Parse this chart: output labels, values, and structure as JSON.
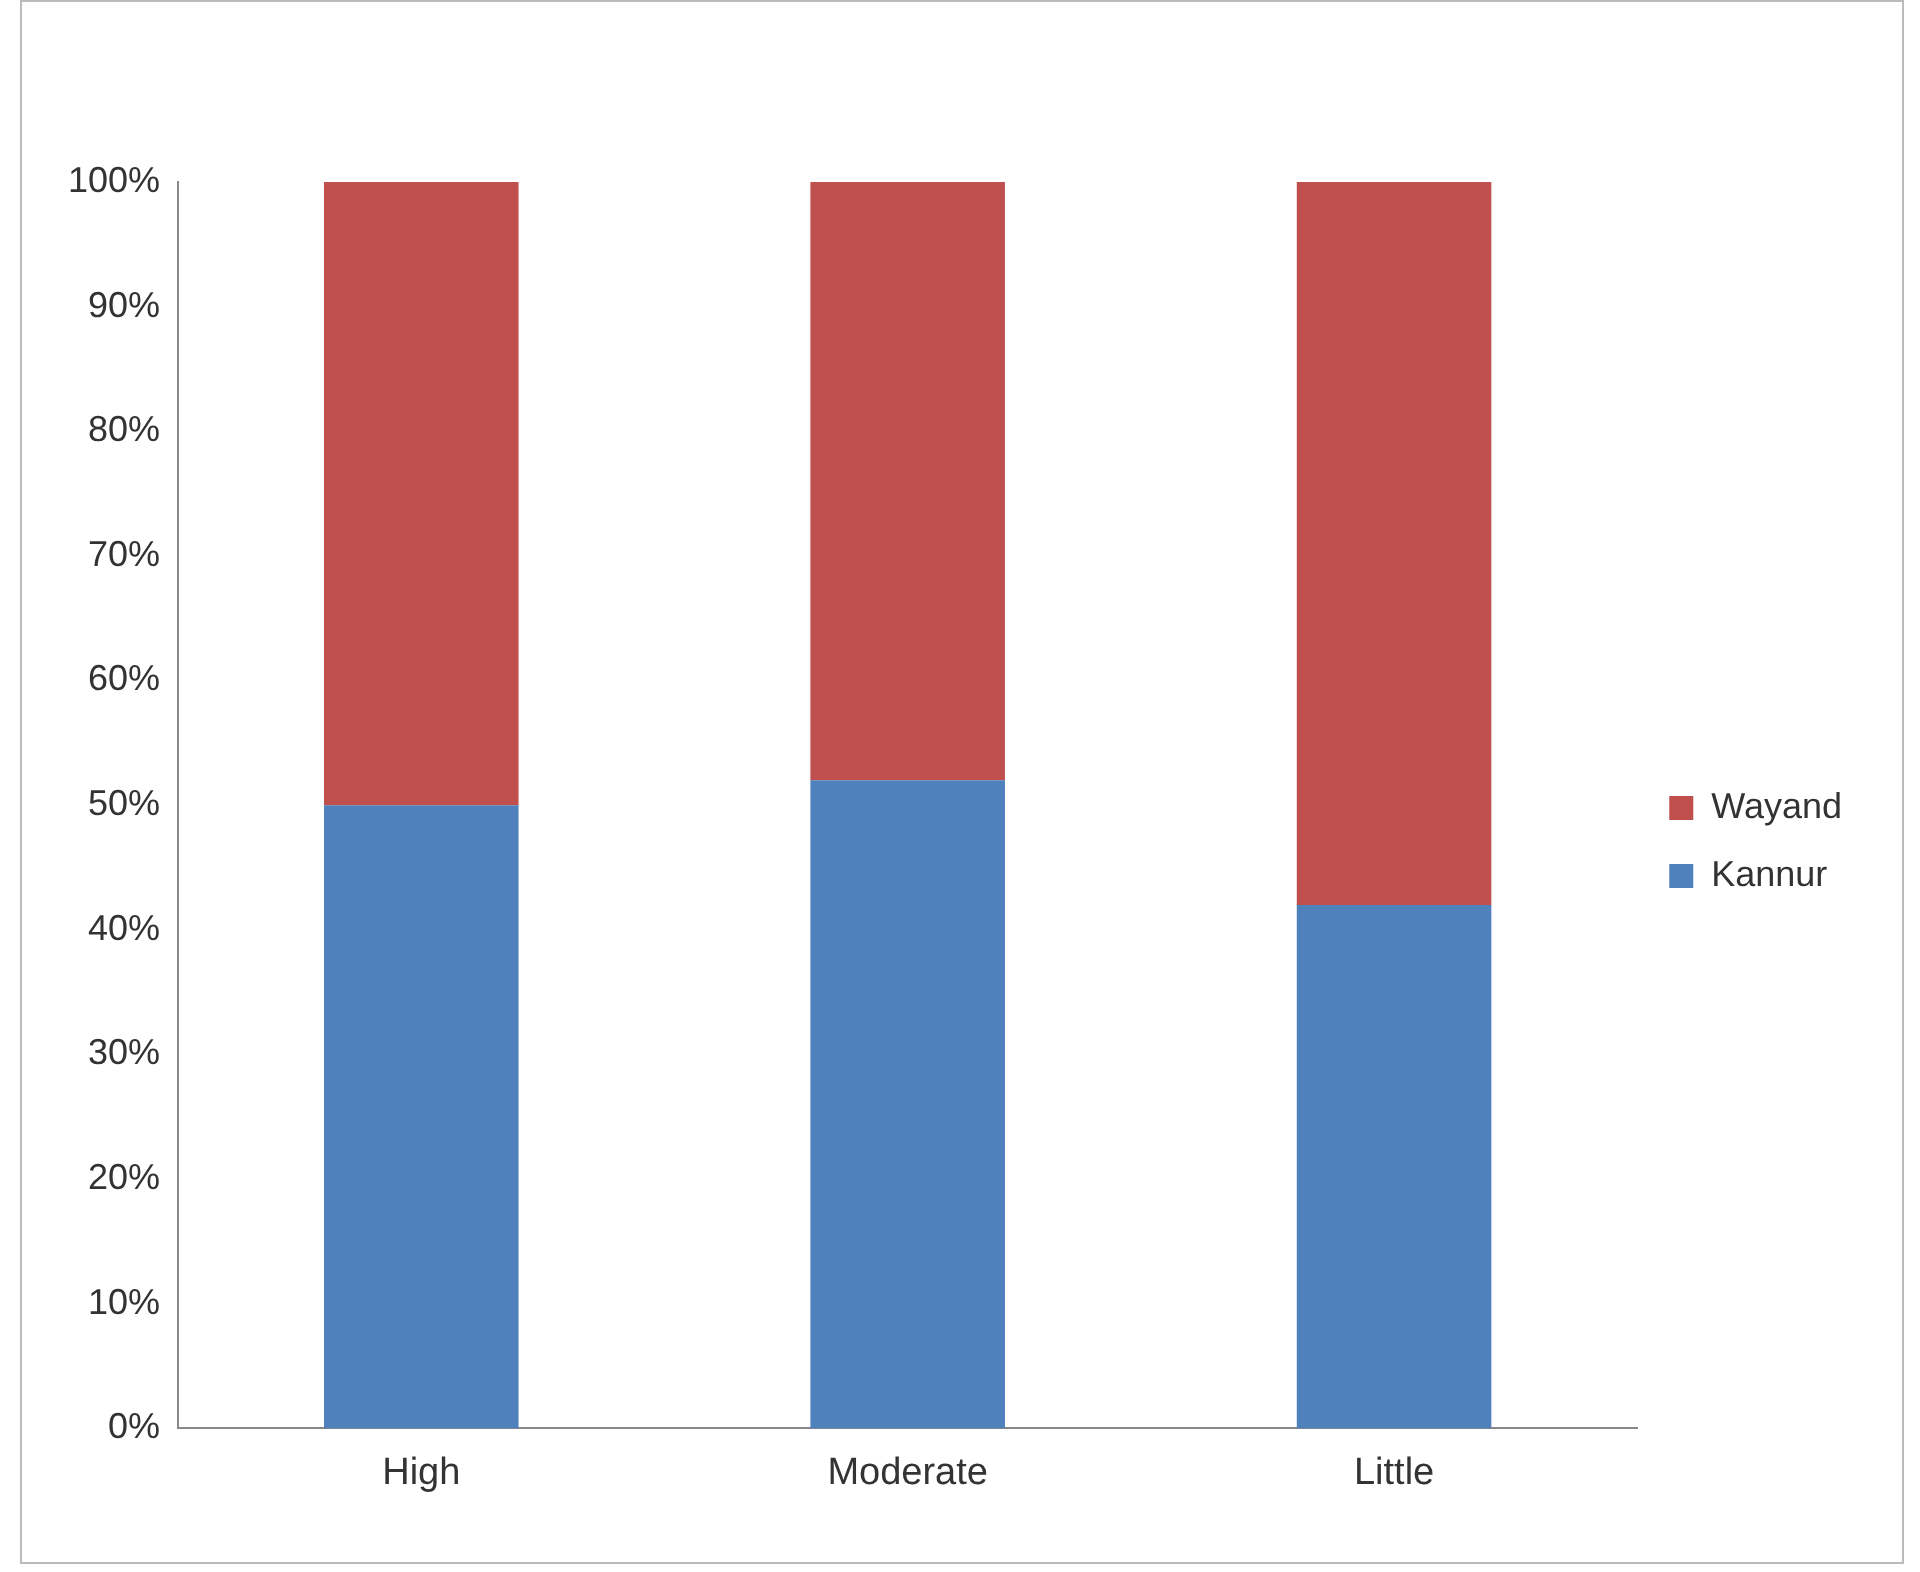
{
  "chart_data": {
    "type": "bar",
    "stacked": true,
    "categories": [
      "High",
      "Moderate",
      "Little"
    ],
    "series": [
      {
        "name": "Kannur",
        "color": "#4f81bd",
        "values": [
          50,
          52,
          42
        ]
      },
      {
        "name": "Wayand",
        "color": "#c0504d",
        "values": [
          50,
          48,
          58
        ]
      }
    ],
    "ylim": [
      0,
      100
    ],
    "yticks": [
      {
        "value": 0,
        "label": "0%"
      },
      {
        "value": 10,
        "label": "10%"
      },
      {
        "value": 20,
        "label": "20%"
      },
      {
        "value": 30,
        "label": "30%"
      },
      {
        "value": 40,
        "label": "40%"
      },
      {
        "value": 50,
        "label": "50%"
      },
      {
        "value": 60,
        "label": "60%"
      },
      {
        "value": 70,
        "label": "70%"
      },
      {
        "value": 80,
        "label": "80%"
      },
      {
        "value": 90,
        "label": "90%"
      },
      {
        "value": 100,
        "label": "100%"
      }
    ],
    "grid": false,
    "legend": "right"
  }
}
